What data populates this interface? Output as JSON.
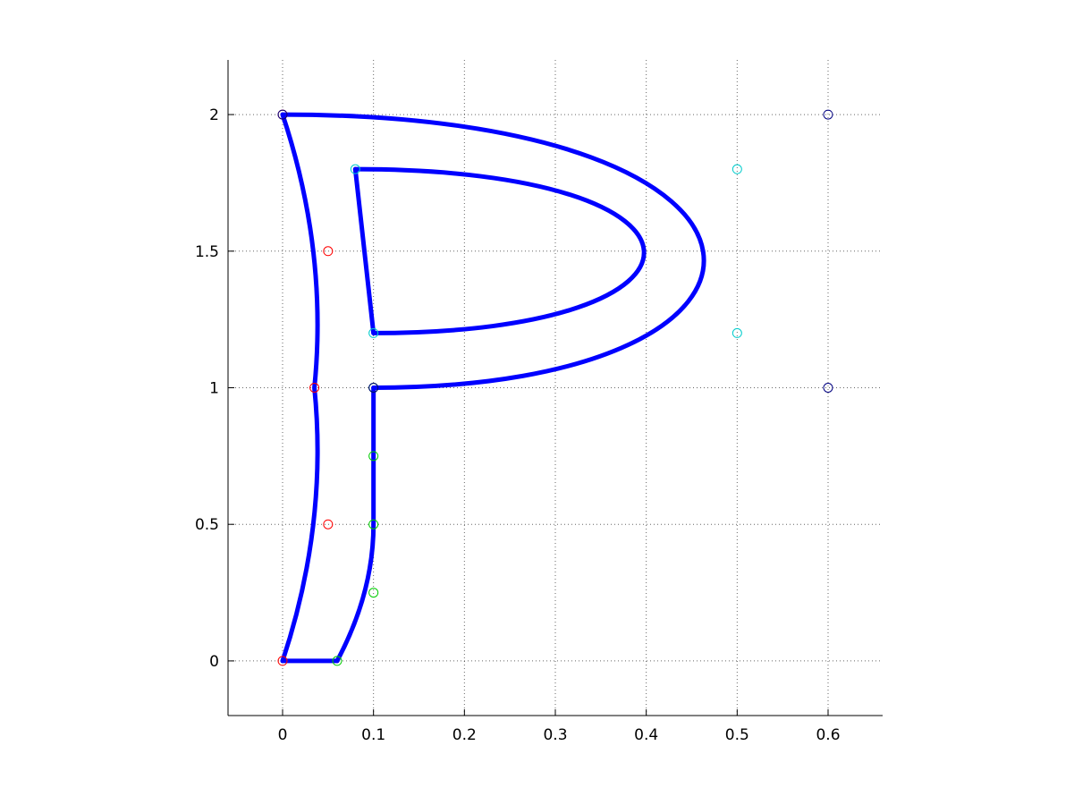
{
  "chart_data": {
    "type": "line",
    "title": "",
    "xlabel": "",
    "ylabel": "",
    "xlim": [
      -0.06,
      0.66
    ],
    "ylim": [
      -0.2,
      2.2
    ],
    "grid": true,
    "x_ticks": [
      {
        "value": 0,
        "label": "0"
      },
      {
        "value": 0.1,
        "label": "0.1"
      },
      {
        "value": 0.2,
        "label": "0.2"
      },
      {
        "value": 0.3,
        "label": "0.3"
      },
      {
        "value": 0.4,
        "label": "0.4"
      },
      {
        "value": 0.5,
        "label": "0.5"
      },
      {
        "value": 0.6,
        "label": "0.6"
      }
    ],
    "y_ticks": [
      {
        "value": 0,
        "label": "0"
      },
      {
        "value": 0.5,
        "label": "0.5"
      },
      {
        "value": 1,
        "label": "1"
      },
      {
        "value": 1.5,
        "label": "1.5"
      },
      {
        "value": 2,
        "label": "2"
      }
    ],
    "curve_color": "#0000ff",
    "segments": [
      {
        "kind": "quadratic",
        "color": "#ff0000",
        "points": [
          [
            0,
            2
          ],
          [
            0.05,
            1.5
          ],
          [
            0.035,
            1
          ],
          [
            0.05,
            0.5
          ],
          [
            0,
            0
          ]
        ]
      },
      {
        "kind": "line",
        "points": [
          [
            0,
            0
          ],
          [
            0.06,
            0
          ]
        ]
      },
      {
        "kind": "quadratic",
        "color": "#00cc00",
        "points": [
          [
            0.06,
            0
          ],
          [
            0.1,
            0.25
          ],
          [
            0.1,
            0.5
          ],
          [
            0.1,
            0.75
          ],
          [
            0.1,
            1
          ]
        ]
      },
      {
        "kind": "cubic",
        "color": "#000080",
        "points": [
          [
            0.1,
            1
          ],
          [
            0.6,
            1
          ],
          [
            0.6,
            2
          ],
          [
            0,
            2
          ]
        ]
      },
      {
        "kind": "line",
        "points": [
          [
            0.08,
            1.8
          ],
          [
            0.1,
            1.2
          ]
        ]
      },
      {
        "kind": "cubic",
        "color": "#00cccc",
        "points": [
          [
            0.1,
            1.2
          ],
          [
            0.5,
            1.2
          ],
          [
            0.5,
            1.8
          ],
          [
            0.08,
            1.8
          ]
        ]
      }
    ]
  }
}
